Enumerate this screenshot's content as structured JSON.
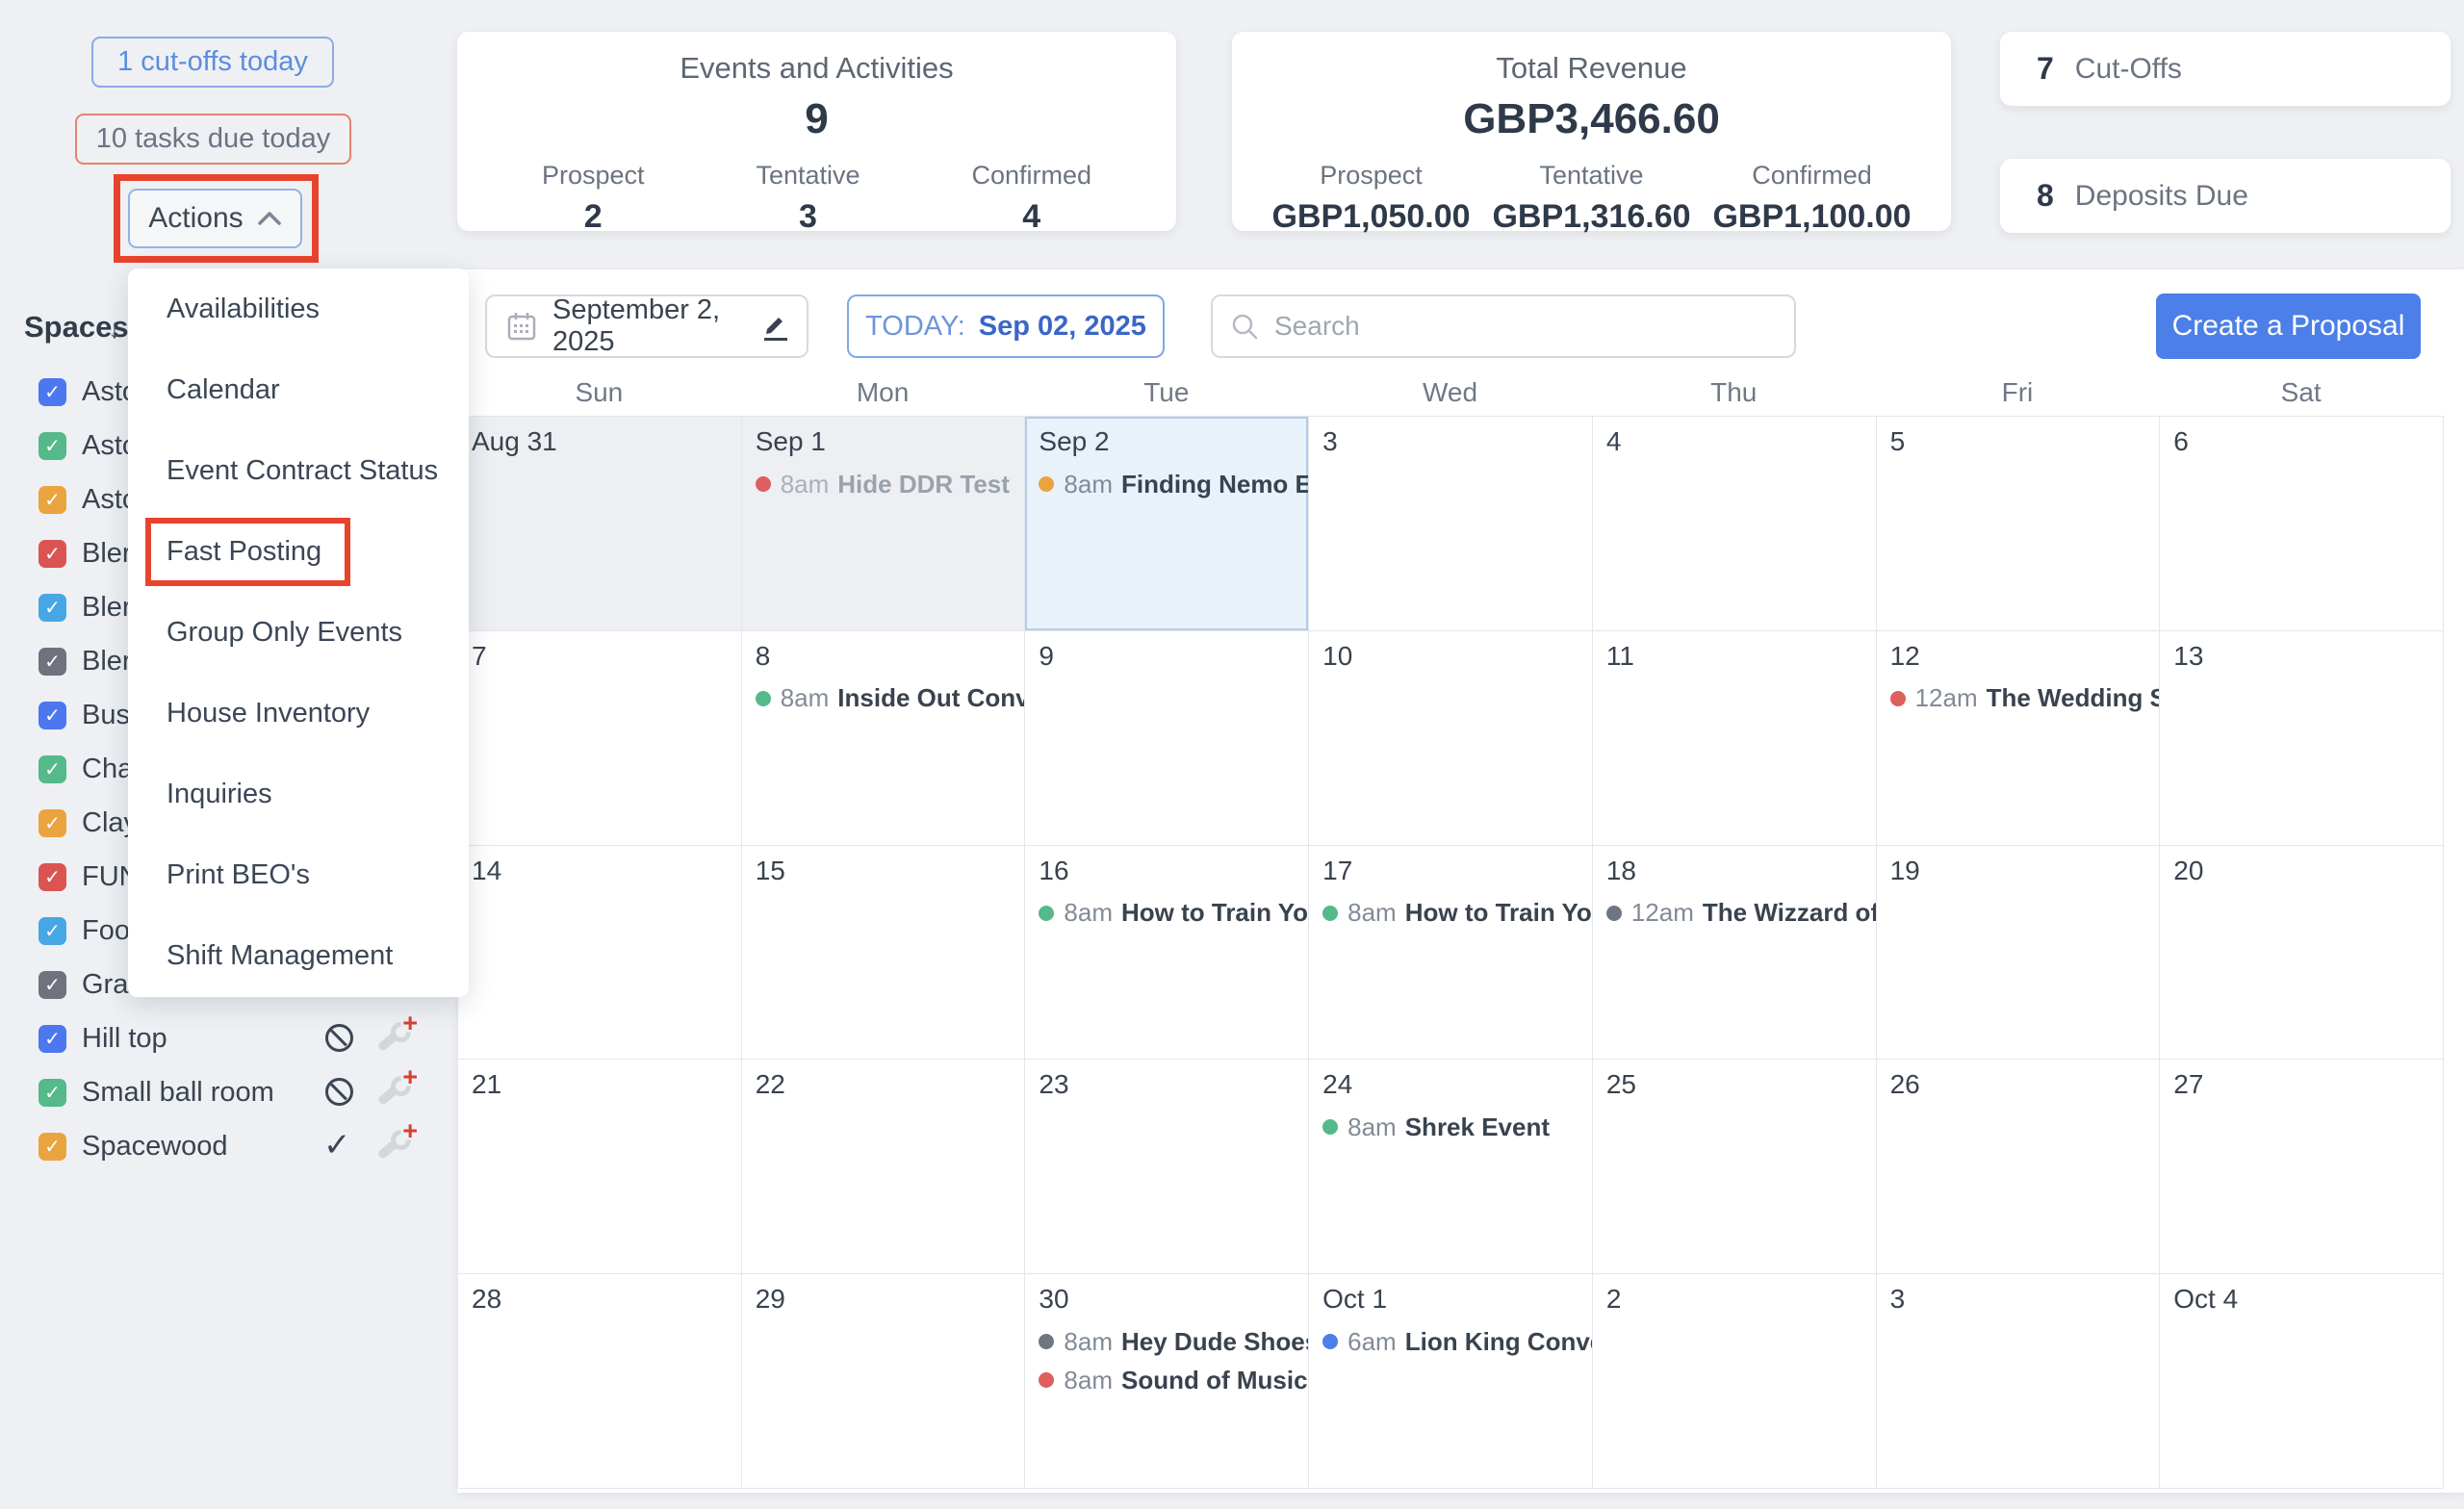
{
  "colors": {
    "accent_blue": "#4c7fe8",
    "annotation_red": "#e8432d",
    "status_green": "#55b98a",
    "status_red": "#df5e5e",
    "status_orange": "#e9a43f",
    "status_gray": "#6e7781",
    "status_blue": "#4c7fe8"
  },
  "topbar": {
    "cutoffs": "1 cut-offs today",
    "tasks": "10 tasks due today",
    "actions": "Actions"
  },
  "cards": {
    "events": {
      "title": "Events and Activities",
      "total": "9",
      "stats": [
        {
          "label": "Prospect",
          "value": "2"
        },
        {
          "label": "Tentative",
          "value": "3"
        },
        {
          "label": "Confirmed",
          "value": "4"
        }
      ]
    },
    "revenue": {
      "title": "Total Revenue",
      "total": "GBP3,466.60",
      "stats": [
        {
          "label": "Prospect",
          "value": "GBP1,050.00"
        },
        {
          "label": "Tentative",
          "value": "GBP1,316.60"
        },
        {
          "label": "Confirmed",
          "value": "GBP1,100.00"
        }
      ]
    }
  },
  "side_cards": [
    {
      "count": "7",
      "label": "Cut-Offs"
    },
    {
      "count": "8",
      "label": "Deposits Due"
    }
  ],
  "actions_menu": {
    "highlighted_index": 3,
    "items": [
      "Availabilities",
      "Calendar",
      "Event Contract Status",
      "Fast Posting",
      "Group Only Events",
      "House Inventory",
      "Inquiries",
      "Print BEO's",
      "Shift Management"
    ]
  },
  "spaces": {
    "header": "Spaces",
    "items": [
      {
        "label": "Asto",
        "color": "#4c77ee"
      },
      {
        "label": "Asto",
        "color": "#55b98a"
      },
      {
        "label": "Asto",
        "color": "#e9a43f"
      },
      {
        "label": "Bler",
        "color": "#da5552"
      },
      {
        "label": "Bler",
        "color": "#47a7e4"
      },
      {
        "label": "Bler",
        "color": "#6e737e"
      },
      {
        "label": "Buse",
        "color": "#4c77ee"
      },
      {
        "label": "Cha",
        "color": "#55b98a"
      },
      {
        "label": "Clay",
        "color": "#e9a43f"
      },
      {
        "label": "FUN",
        "color": "#da5552"
      },
      {
        "label": "Foo",
        "color": "#47a7e4"
      },
      {
        "label": "Gra",
        "color": "#6e737e"
      },
      {
        "label": "Hill top",
        "color": "#4c77ee",
        "status": "no-entry",
        "wrench": true
      },
      {
        "label": "Small ball room",
        "color": "#55b98a",
        "status": "no-entry",
        "wrench": true
      },
      {
        "label": "Spacewood",
        "color": "#e9a43f",
        "status": "check",
        "wrench": true
      }
    ]
  },
  "toolbar": {
    "date_label": "September 2, 2025",
    "today_prefix": "TODAY:",
    "today_date": "Sep 02, 2025",
    "search_placeholder": "Search",
    "create_proposal": "Create a Proposal"
  },
  "calendar": {
    "day_headers": [
      "Sun",
      "Mon",
      "Tue",
      "Wed",
      "Thu",
      "Fri",
      "Sat"
    ],
    "weeks": [
      [
        {
          "label": "Aug 31",
          "state": "past"
        },
        {
          "label": "Sep 1",
          "state": "past",
          "events": [
            {
              "time": "8am",
              "title": "Hide DDR Test",
              "color": "#df5e5e",
              "muted": true
            }
          ]
        },
        {
          "label": "Sep 2",
          "state": "today",
          "events": [
            {
              "time": "8am",
              "title": "Finding Nemo Even",
              "color": "#e9a43f"
            }
          ]
        },
        {
          "label": "3"
        },
        {
          "label": "4"
        },
        {
          "label": "5"
        },
        {
          "label": "6"
        }
      ],
      [
        {
          "label": "7"
        },
        {
          "label": "8",
          "events": [
            {
              "time": "8am",
              "title": "Inside Out Convent",
              "color": "#55b98a"
            }
          ]
        },
        {
          "label": "9"
        },
        {
          "label": "10"
        },
        {
          "label": "11"
        },
        {
          "label": "12",
          "events": [
            {
              "time": "12am",
              "title": "The Wedding Sing",
              "color": "#df5e5e"
            }
          ]
        },
        {
          "label": "13"
        }
      ],
      [
        {
          "label": "14"
        },
        {
          "label": "15"
        },
        {
          "label": "16",
          "events": [
            {
              "time": "8am",
              "title": "How to Train Your D",
              "color": "#55b98a"
            }
          ]
        },
        {
          "label": "17",
          "events": [
            {
              "time": "8am",
              "title": "How to Train Your D",
              "color": "#55b98a"
            }
          ]
        },
        {
          "label": "18",
          "events": [
            {
              "time": "12am",
              "title": "The Wizzard of OZ",
              "color": "#6e7781"
            }
          ]
        },
        {
          "label": "19"
        },
        {
          "label": "20"
        }
      ],
      [
        {
          "label": "21"
        },
        {
          "label": "22"
        },
        {
          "label": "23"
        },
        {
          "label": "24",
          "events": [
            {
              "time": "8am",
              "title": "Shrek Event",
              "color": "#55b98a"
            }
          ]
        },
        {
          "label": "25"
        },
        {
          "label": "26"
        },
        {
          "label": "27"
        }
      ],
      [
        {
          "label": "28"
        },
        {
          "label": "29"
        },
        {
          "label": "30",
          "events": [
            {
              "time": "8am",
              "title": "Hey Dude Shoes Co",
              "color": "#6e7781"
            },
            {
              "time": "8am",
              "title": "Sound of Music Reu",
              "color": "#df5e5e"
            }
          ]
        },
        {
          "label": "Oct 1",
          "events": [
            {
              "time": "6am",
              "title": "Lion King Conventi",
              "color": "#4c7fe8"
            }
          ]
        },
        {
          "label": "2"
        },
        {
          "label": "3"
        },
        {
          "label": "Oct 4"
        }
      ]
    ]
  }
}
